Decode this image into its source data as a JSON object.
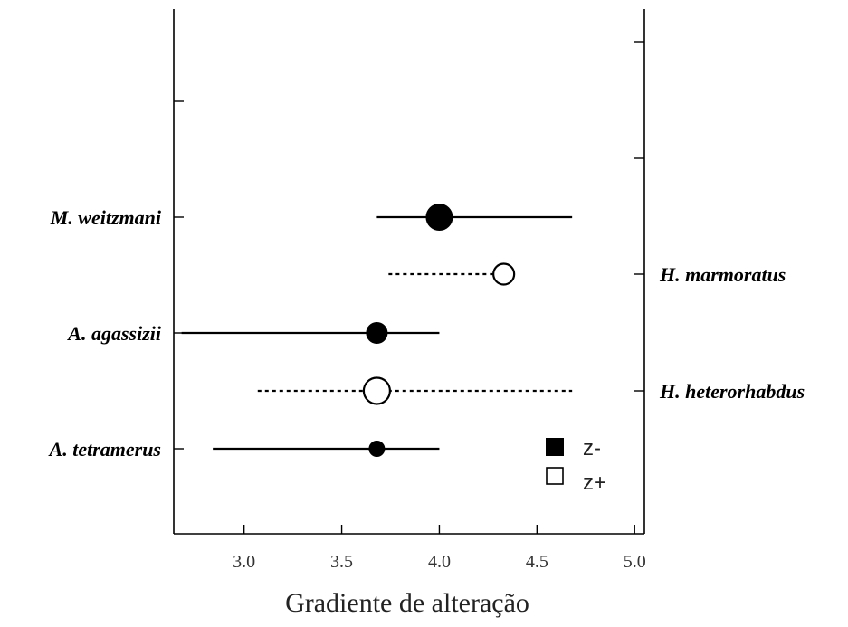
{
  "chart_data": {
    "type": "scatter",
    "title": "",
    "xlabel": "Gradiente de alteração",
    "ylabel": "",
    "xlim": [
      2.64,
      5.05
    ],
    "xticks": [
      3.0,
      3.5,
      4.0,
      4.5,
      5.0
    ],
    "xtick_labels": [
      "3.0",
      "3.5",
      "4.0",
      "4.5",
      "5.0"
    ],
    "grid": false,
    "legend": {
      "placement": "bottom-right",
      "entries": [
        {
          "label": "z-",
          "marker": "filled-square"
        },
        {
          "label": "z+",
          "marker": "open-square"
        }
      ]
    },
    "series": [
      {
        "species": "M. weitzmani",
        "label_side": "left",
        "group": "z-",
        "value": 4.0,
        "interval": [
          3.68,
          4.68
        ],
        "line_style": "solid",
        "marker_size": "large"
      },
      {
        "species": "H. marmoratus",
        "label_side": "right",
        "group": "z+",
        "value": 4.33,
        "interval": [
          3.74,
          4.33
        ],
        "line_style": "dashed",
        "marker_size": "medium"
      },
      {
        "species": "A. agassizii",
        "label_side": "left",
        "group": "z-",
        "value": 3.68,
        "interval": [
          2.68,
          4.0
        ],
        "line_style": "solid",
        "marker_size": "medium"
      },
      {
        "species": "H. heterorhabdus",
        "label_side": "right",
        "group": "z+",
        "value": 3.68,
        "interval": [
          3.07,
          4.68
        ],
        "line_style": "dashed",
        "marker_size": "large"
      },
      {
        "species": "A. tetramerus",
        "label_side": "left",
        "group": "z-",
        "value": 3.68,
        "interval": [
          2.84,
          4.0
        ],
        "line_style": "solid",
        "marker_size": "small"
      }
    ]
  }
}
